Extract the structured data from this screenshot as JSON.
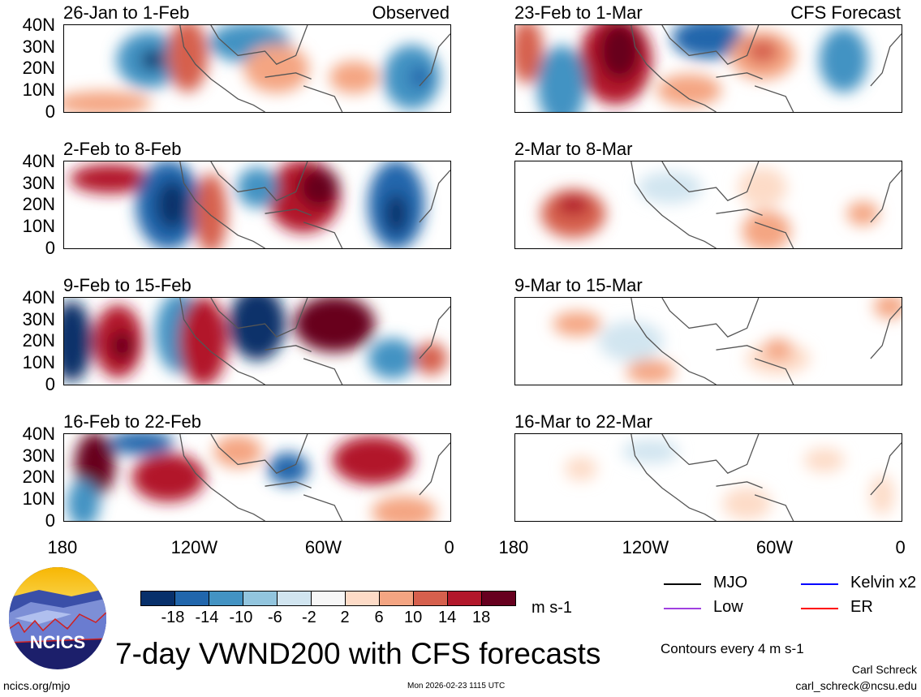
{
  "panels": [
    {
      "title": "26-Jan to 1-Feb",
      "label": "Observed"
    },
    {
      "title": "23-Feb to 1-Mar",
      "label": "CFS Forecast"
    },
    {
      "title": "2-Feb to 8-Feb",
      "label": ""
    },
    {
      "title": "2-Mar to 8-Mar",
      "label": ""
    },
    {
      "title": "9-Feb to 15-Feb",
      "label": ""
    },
    {
      "title": "9-Mar to 15-Mar",
      "label": ""
    },
    {
      "title": "16-Feb to 22-Feb",
      "label": ""
    },
    {
      "title": "16-Mar to 22-Mar",
      "label": ""
    }
  ],
  "lat_labels": [
    "40N",
    "30N",
    "20N",
    "10N",
    "0"
  ],
  "lon_labels": [
    "180",
    "120W",
    "60W",
    "0"
  ],
  "colorbar": {
    "colors": [
      "#08306b",
      "#2166ac",
      "#4393c3",
      "#92c5de",
      "#d1e5f0",
      "#f7f7f7",
      "#fddbc7",
      "#f4a582",
      "#d6604d",
      "#b2182b",
      "#67001f"
    ],
    "ticks": [
      "-18",
      "-14",
      "-10",
      "-6",
      "-2",
      "2",
      "6",
      "10",
      "14",
      "18"
    ],
    "units": "m s-1"
  },
  "legend": [
    {
      "label": "MJO",
      "color": "#000000"
    },
    {
      "label": "Kelvin x2",
      "color": "#0000ff"
    },
    {
      "label": "Low",
      "color": "#a040e0"
    },
    {
      "label": "ER",
      "color": "#ff0000"
    }
  ],
  "contour_note": "Contours every 4 m s-1",
  "title": "7-day VWND200 with CFS forecasts",
  "logo_text": "NCICS",
  "url": "ncics.org/mjo",
  "timestamp": "Mon 2026-02-23 1115 UTC",
  "author": "Carl Schreck",
  "email": "carl_schreck@ncsu.edu"
}
